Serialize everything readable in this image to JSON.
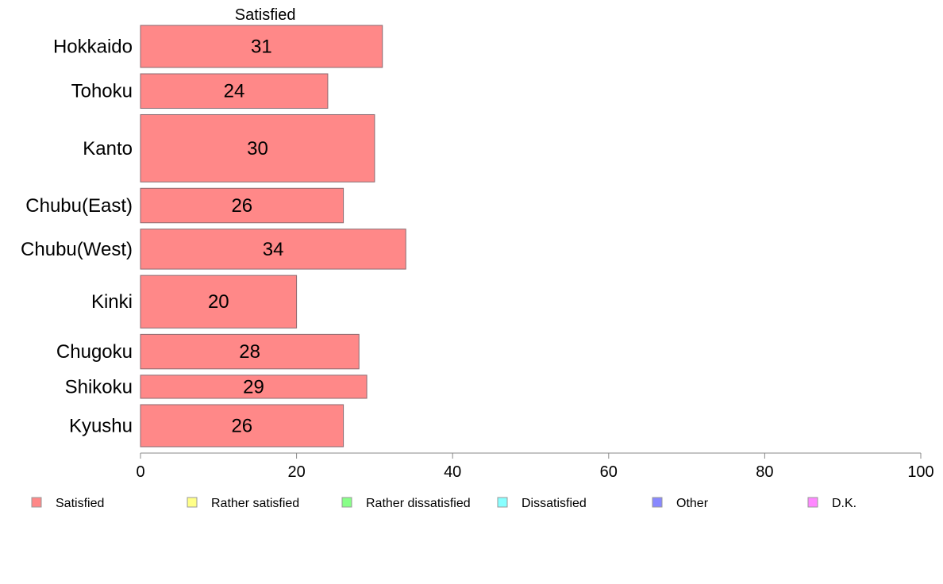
{
  "chart_data": {
    "type": "bar",
    "orientation": "horizontal",
    "stacked": true,
    "categories": [
      "Hokkaido",
      "Tohoku",
      "Kanto",
      "Chubu(East)",
      "Chubu(West)",
      "Kinki",
      "Chugoku",
      "Shikoku",
      "Kyushu"
    ],
    "series": [
      {
        "name": "Satisfied",
        "color": "#ff8888",
        "values": [
          31,
          24,
          30,
          26,
          34,
          20,
          28,
          29,
          26
        ]
      }
    ],
    "relative_bar_widths": [
      1.0,
      0.82,
      1.6,
      0.82,
      0.95,
      1.25,
      0.82,
      0.55,
      1.0
    ],
    "top_label": "Satisfied",
    "xlim": [
      0,
      100
    ],
    "xticks": [
      0,
      20,
      40,
      60,
      80,
      100
    ],
    "grid": false,
    "legend_position": "bottom",
    "legend": [
      {
        "label": "Satisfied",
        "color": "#ff8888"
      },
      {
        "label": "Rather satisfied",
        "color": "#ffff88"
      },
      {
        "label": "Rather dissatisfied",
        "color": "#88ff88"
      },
      {
        "label": "Dissatisfied",
        "color": "#88ffff"
      },
      {
        "label": "Other",
        "color": "#8888ff"
      },
      {
        "label": "D.K.",
        "color": "#ff88ff"
      }
    ]
  }
}
